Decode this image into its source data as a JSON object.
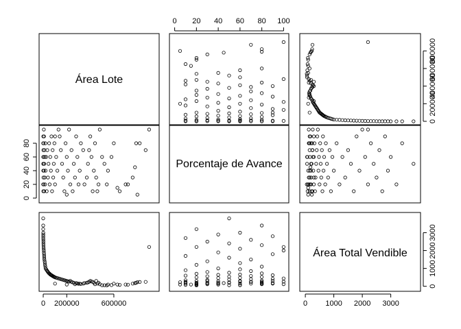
{
  "chart_data": {
    "type": "scatter",
    "layout": "scatterplot-matrix",
    "variables": [
      {
        "name": "Área Lote",
        "range": [
          0,
          950000
        ],
        "ticks": [
          0,
          200000,
          600000
        ],
        "tick_labels": [
          "0",
          "200000",
          "600000"
        ]
      },
      {
        "name": "Porcentaje de Avance",
        "range": [
          -1,
          101
        ],
        "ticks": [
          0,
          20,
          40,
          60,
          80,
          100
        ],
        "tick_labels": [
          "0",
          "20",
          "40",
          "60",
          "80",
          "100"
        ],
        "left_ticks": [
          0,
          20,
          40,
          60,
          80
        ],
        "left_tick_labels": [
          "0",
          "20",
          "40",
          "60",
          "80"
        ]
      },
      {
        "name": "Área Total Vendible",
        "range": [
          -50,
          3900
        ],
        "ticks": [
          0,
          1000,
          2000,
          3000
        ],
        "tick_labels": [
          "0",
          "1000",
          "2000",
          "3000"
        ],
        "right_ticks": [
          0,
          1000,
          2000,
          3000
        ],
        "right_tick_labels": [
          "0",
          "1000",
          "2000",
          "3000"
        ]
      }
    ],
    "area_lote_right_ticks": [
      0,
      200000,
      400000,
      600000,
      800000
    ],
    "area_lote_right_tick_labels": [
      "0",
      "200000",
      "400000",
      "600000",
      "800000"
    ],
    "points": [
      [
        900000,
        100,
        2200
      ],
      [
        870000,
        70,
        250
      ],
      [
        820000,
        80,
        240
      ],
      [
        800000,
        5,
        230
      ],
      [
        790000,
        80,
        200
      ],
      [
        780000,
        45,
        180
      ],
      [
        760000,
        30,
        150
      ],
      [
        720000,
        20,
        90
      ],
      [
        700000,
        20,
        100
      ],
      [
        650000,
        10,
        80
      ],
      [
        630000,
        15,
        100
      ],
      [
        600000,
        80,
        150
      ],
      [
        580000,
        60,
        70
      ],
      [
        550000,
        40,
        100
      ],
      [
        540000,
        20,
        50
      ],
      [
        520000,
        50,
        60
      ],
      [
        500000,
        60,
        60
      ],
      [
        480000,
        100,
        120
      ],
      [
        470000,
        20,
        200
      ],
      [
        460000,
        10,
        150
      ],
      [
        450000,
        30,
        300
      ],
      [
        440000,
        80,
        120
      ],
      [
        430000,
        40,
        200
      ],
      [
        420000,
        10,
        250
      ],
      [
        410000,
        60,
        270
      ],
      [
        400000,
        90,
        300
      ],
      [
        390000,
        70,
        250
      ],
      [
        380000,
        50,
        220
      ],
      [
        370000,
        30,
        200
      ],
      [
        350000,
        20,
        180
      ],
      [
        340000,
        70,
        150
      ],
      [
        320000,
        80,
        130
      ],
      [
        310000,
        40,
        150
      ],
      [
        300000,
        20,
        140
      ],
      [
        290000,
        60,
        160
      ],
      [
        280000,
        90,
        180
      ],
      [
        270000,
        30,
        120
      ],
      [
        260000,
        50,
        200
      ],
      [
        250000,
        10,
        220
      ],
      [
        240000,
        70,
        250
      ],
      [
        230000,
        20,
        300
      ],
      [
        220000,
        100,
        260
      ],
      [
        210000,
        40,
        280
      ],
      [
        200000,
        60,
        300
      ],
      [
        190000,
        80,
        320
      ],
      [
        180000,
        10,
        340
      ],
      [
        170000,
        30,
        360
      ],
      [
        160000,
        50,
        380
      ],
      [
        150000,
        70,
        400
      ],
      [
        140000,
        90,
        420
      ],
      [
        130000,
        100,
        440
      ],
      [
        120000,
        40,
        460
      ],
      [
        110000,
        60,
        480
      ],
      [
        100000,
        20,
        500
      ],
      [
        95000,
        80,
        520
      ],
      [
        90000,
        50,
        540
      ],
      [
        85000,
        30,
        560
      ],
      [
        80000,
        70,
        580
      ],
      [
        75000,
        10,
        600
      ],
      [
        70000,
        90,
        620
      ],
      [
        65000,
        40,
        640
      ],
      [
        60000,
        60,
        660
      ],
      [
        55000,
        20,
        700
      ],
      [
        50000,
        80,
        720
      ],
      [
        45000,
        50,
        760
      ],
      [
        40000,
        30,
        800
      ],
      [
        35000,
        70,
        850
      ],
      [
        30000,
        10,
        900
      ],
      [
        25000,
        60,
        950
      ],
      [
        20000,
        40,
        1000
      ],
      [
        18000,
        80,
        1100
      ],
      [
        16000,
        20,
        1200
      ],
      [
        14000,
        60,
        1300
      ],
      [
        12000,
        30,
        1400
      ],
      [
        10000,
        70,
        1500
      ],
      [
        9000,
        50,
        1600
      ],
      [
        8000,
        10,
        1700
      ],
      [
        7000,
        90,
        1800
      ],
      [
        6000,
        40,
        1900
      ],
      [
        5000,
        100,
        2000
      ],
      [
        4000,
        60,
        2100
      ],
      [
        3000,
        20,
        2200
      ],
      [
        2500,
        80,
        2300
      ],
      [
        2000,
        50,
        2400
      ],
      [
        1500,
        30,
        2500
      ],
      [
        1000,
        70,
        2600
      ],
      [
        800,
        10,
        2700
      ],
      [
        600,
        90,
        2800
      ],
      [
        400,
        40,
        2900
      ],
      [
        300,
        60,
        3000
      ],
      [
        200,
        20,
        3200
      ],
      [
        100,
        80,
        3400
      ],
      [
        50,
        50,
        3800
      ],
      [
        100000,
        90,
        150
      ],
      [
        200000,
        5,
        100
      ]
    ]
  }
}
